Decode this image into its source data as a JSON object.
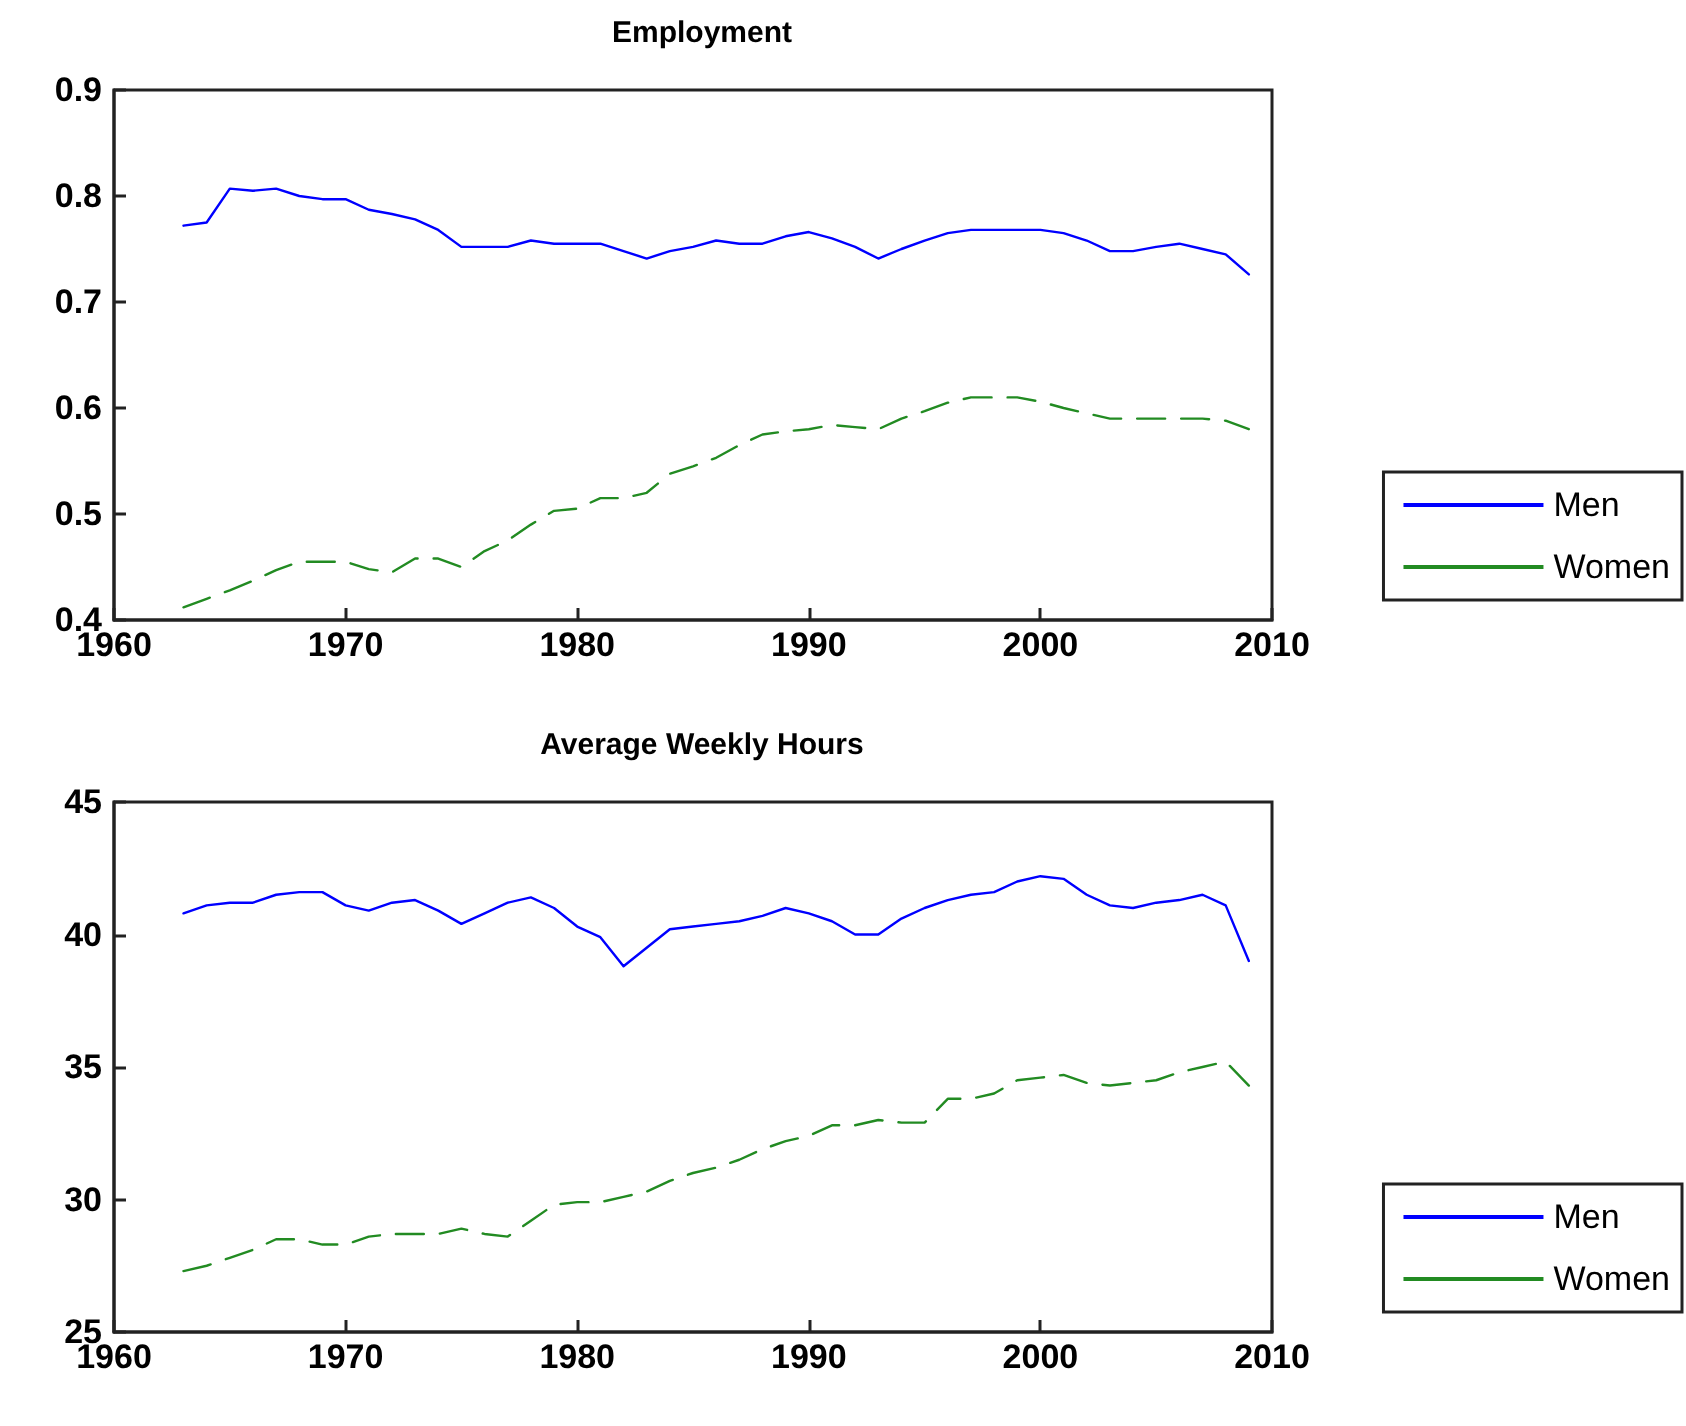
{
  "chart_data": [
    {
      "type": "line",
      "title": "Employment",
      "x": [
        1963,
        1964,
        1965,
        1966,
        1967,
        1968,
        1969,
        1970,
        1971,
        1972,
        1973,
        1974,
        1975,
        1976,
        1977,
        1978,
        1979,
        1980,
        1981,
        1982,
        1983,
        1984,
        1985,
        1986,
        1987,
        1988,
        1989,
        1990,
        1991,
        1992,
        1993,
        1994,
        1995,
        1996,
        1997,
        1998,
        1999,
        2000,
        2001,
        2002,
        2003,
        2004,
        2005,
        2006,
        2007,
        2008,
        2009
      ],
      "series": [
        {
          "name": "Men",
          "color": "#0000ff",
          "line_style": "solid",
          "values": [
            0.772,
            0.775,
            0.807,
            0.805,
            0.807,
            0.8,
            0.797,
            0.797,
            0.787,
            0.783,
            0.778,
            0.768,
            0.752,
            0.752,
            0.752,
            0.758,
            0.755,
            0.755,
            0.755,
            0.748,
            0.741,
            0.748,
            0.752,
            0.758,
            0.755,
            0.755,
            0.762,
            0.766,
            0.76,
            0.752,
            0.741,
            0.75,
            0.758,
            0.765,
            0.768,
            0.768,
            0.768,
            0.768,
            0.765,
            0.758,
            0.748,
            0.748,
            0.752,
            0.755,
            0.75,
            0.745,
            0.726
          ]
        },
        {
          "name": "Women",
          "color": "#228b22",
          "line_style": "dashed",
          "values": [
            0.412,
            0.42,
            0.428,
            0.437,
            0.447,
            0.455,
            0.455,
            0.455,
            0.448,
            0.445,
            0.458,
            0.458,
            0.45,
            0.465,
            0.475,
            0.49,
            0.503,
            0.505,
            0.515,
            0.515,
            0.52,
            0.538,
            0.545,
            0.553,
            0.565,
            0.575,
            0.578,
            0.58,
            0.584,
            0.582,
            0.58,
            0.59,
            0.597,
            0.605,
            0.61,
            0.61,
            0.61,
            0.606,
            0.6,
            0.595,
            0.59,
            0.59,
            0.59,
            0.59,
            0.59,
            0.588,
            0.58
          ]
        }
      ],
      "xlim": [
        1960,
        2010
      ],
      "xticks": [
        1960,
        1970,
        1980,
        1990,
        2000,
        2010
      ],
      "ylim": [
        0.4,
        0.9
      ],
      "yticks": [
        0.4,
        0.5,
        0.6,
        0.7,
        0.8,
        0.9
      ],
      "grid": false,
      "legend": "right",
      "marker": "none"
    },
    {
      "type": "line",
      "title": "Average Weekly Hours",
      "x": [
        1963,
        1964,
        1965,
        1966,
        1967,
        1968,
        1969,
        1970,
        1971,
        1972,
        1973,
        1974,
        1975,
        1976,
        1977,
        1978,
        1979,
        1980,
        1981,
        1982,
        1983,
        1984,
        1985,
        1986,
        1987,
        1988,
        1989,
        1990,
        1991,
        1992,
        1993,
        1994,
        1995,
        1996,
        1997,
        1998,
        1999,
        2000,
        2001,
        2002,
        2003,
        2004,
        2005,
        2006,
        2007,
        2008,
        2009
      ],
      "series": [
        {
          "name": "Men",
          "color": "#0000ff",
          "line_style": "solid",
          "values": [
            40.8,
            41.1,
            41.2,
            41.2,
            41.5,
            41.6,
            41.6,
            41.1,
            40.9,
            41.2,
            41.3,
            40.9,
            40.4,
            40.8,
            41.2,
            41.4,
            41.0,
            40.3,
            39.9,
            38.8,
            39.5,
            40.2,
            40.3,
            40.4,
            40.5,
            40.7,
            41.0,
            40.8,
            40.5,
            40.0,
            40.0,
            40.6,
            41.0,
            41.3,
            41.5,
            41.6,
            42.0,
            42.2,
            42.1,
            41.5,
            41.1,
            41.0,
            41.2,
            41.3,
            41.5,
            41.1,
            39.0
          ]
        },
        {
          "name": "Women",
          "color": "#228b22",
          "line_style": "dashed",
          "values": [
            27.3,
            27.5,
            27.8,
            28.1,
            28.5,
            28.5,
            28.3,
            28.3,
            28.6,
            28.7,
            28.7,
            28.7,
            28.9,
            28.7,
            28.6,
            29.2,
            29.8,
            29.9,
            29.9,
            30.1,
            30.3,
            30.7,
            31.0,
            31.2,
            31.5,
            31.9,
            32.2,
            32.4,
            32.8,
            32.8,
            33.0,
            32.9,
            32.9,
            33.8,
            33.8,
            34.0,
            34.5,
            34.6,
            34.7,
            34.4,
            34.3,
            34.4,
            34.5,
            34.8,
            35.0,
            35.2,
            34.3
          ]
        }
      ],
      "xlim": [
        1960,
        2010
      ],
      "xticks": [
        1960,
        1970,
        1980,
        1990,
        2000,
        2010
      ],
      "ylim": [
        25,
        45
      ],
      "yticks": [
        25,
        30,
        35,
        40,
        45
      ],
      "grid": false,
      "legend": "right",
      "marker": "none"
    }
  ]
}
